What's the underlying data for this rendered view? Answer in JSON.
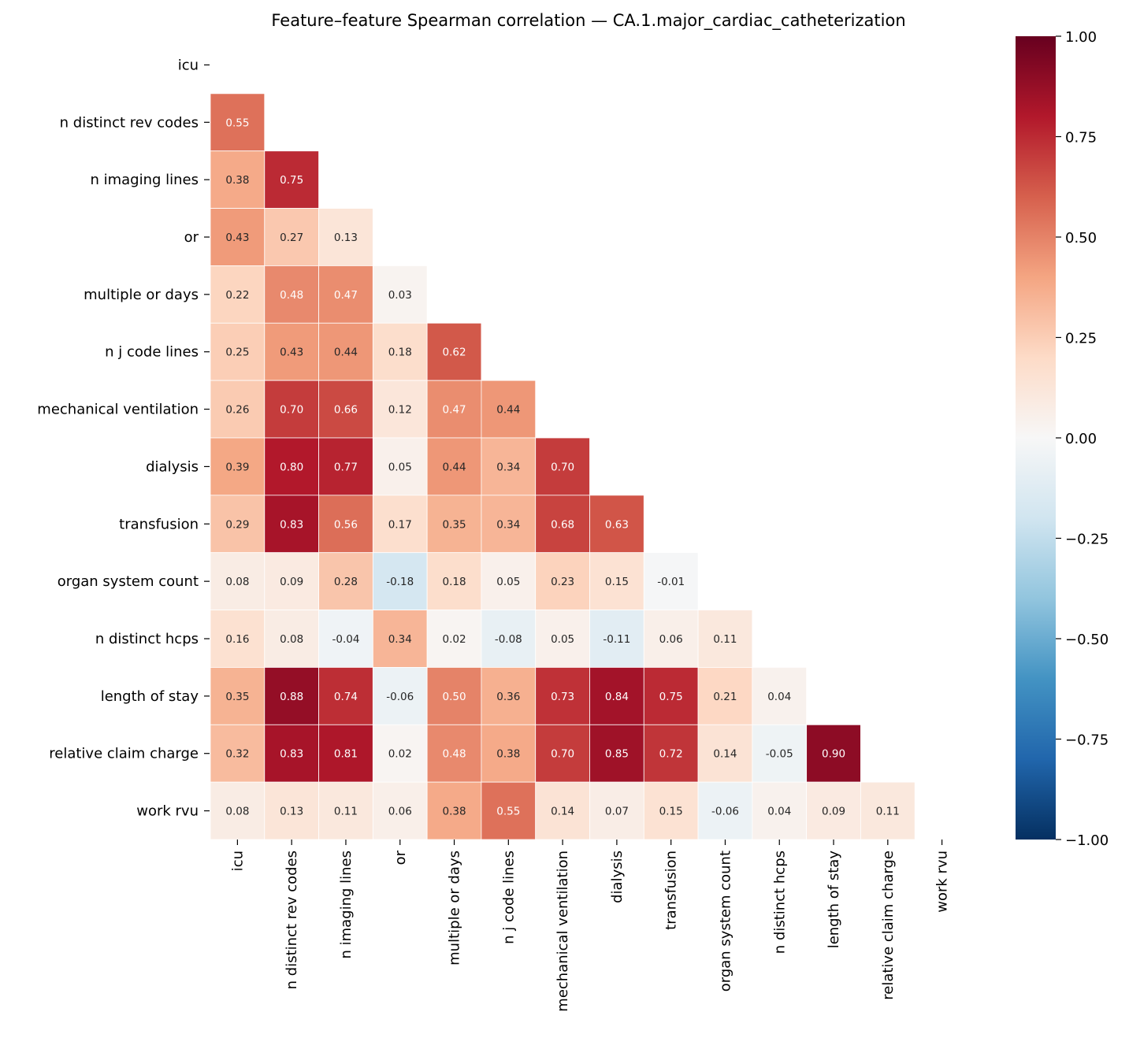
{
  "chart_data": {
    "type": "heatmap",
    "title": "Feature–feature Spearman correlation — CA.1.major_cardiac_catheterization",
    "labels": [
      "icu",
      "n distinct rev codes",
      "n imaging lines",
      "or",
      "multiple or days",
      "n j code lines",
      "mechanical ventilation",
      "dialysis",
      "transfusion",
      "organ system count",
      "n distinct hcps",
      "length of stay",
      "relative claim charge",
      "work rvu"
    ],
    "mask": "upper-triangle-including-diagonal",
    "lower_triangle_values": [
      [],
      [
        0.55
      ],
      [
        0.38,
        0.75
      ],
      [
        0.43,
        0.27,
        0.13
      ],
      [
        0.22,
        0.48,
        0.47,
        0.03
      ],
      [
        0.25,
        0.43,
        0.44,
        0.18,
        0.62
      ],
      [
        0.26,
        0.7,
        0.66,
        0.12,
        0.47,
        0.44
      ],
      [
        0.39,
        0.8,
        0.77,
        0.05,
        0.44,
        0.34,
        0.7
      ],
      [
        0.29,
        0.83,
        0.56,
        0.17,
        0.35,
        0.34,
        0.68,
        0.63
      ],
      [
        0.08,
        0.09,
        0.28,
        -0.18,
        0.18,
        0.05,
        0.23,
        0.15,
        -0.01
      ],
      [
        0.16,
        0.08,
        -0.04,
        0.34,
        0.02,
        -0.08,
        0.05,
        -0.11,
        0.06,
        0.11
      ],
      [
        0.35,
        0.88,
        0.74,
        -0.06,
        0.5,
        0.36,
        0.73,
        0.84,
        0.75,
        0.21,
        0.04
      ],
      [
        0.32,
        0.83,
        0.81,
        0.02,
        0.48,
        0.38,
        0.7,
        0.85,
        0.72,
        0.14,
        -0.05,
        0.9
      ],
      [
        0.08,
        0.13,
        0.11,
        0.06,
        0.38,
        0.55,
        0.14,
        0.07,
        0.15,
        -0.06,
        0.04,
        0.09,
        0.11
      ]
    ],
    "colormap": "RdBu_r",
    "colorbar": {
      "range": [
        -1,
        1
      ],
      "ticks": [
        "1.00",
        "0.75",
        "0.50",
        "0.25",
        "0.00",
        "−0.25",
        "−0.50",
        "−0.75",
        "−1.00"
      ],
      "tick_values": [
        1,
        0.75,
        0.5,
        0.25,
        0,
        -0.25,
        -0.5,
        -0.75,
        -1
      ],
      "colors": [
        "#053061",
        "#2166ac",
        "#4393c3",
        "#92c5de",
        "#d1e5f0",
        "#f7f7f7",
        "#fddbc7",
        "#f4a582",
        "#d6604d",
        "#b2182b",
        "#67001f"
      ]
    },
    "annotation_format": "0.00"
  }
}
